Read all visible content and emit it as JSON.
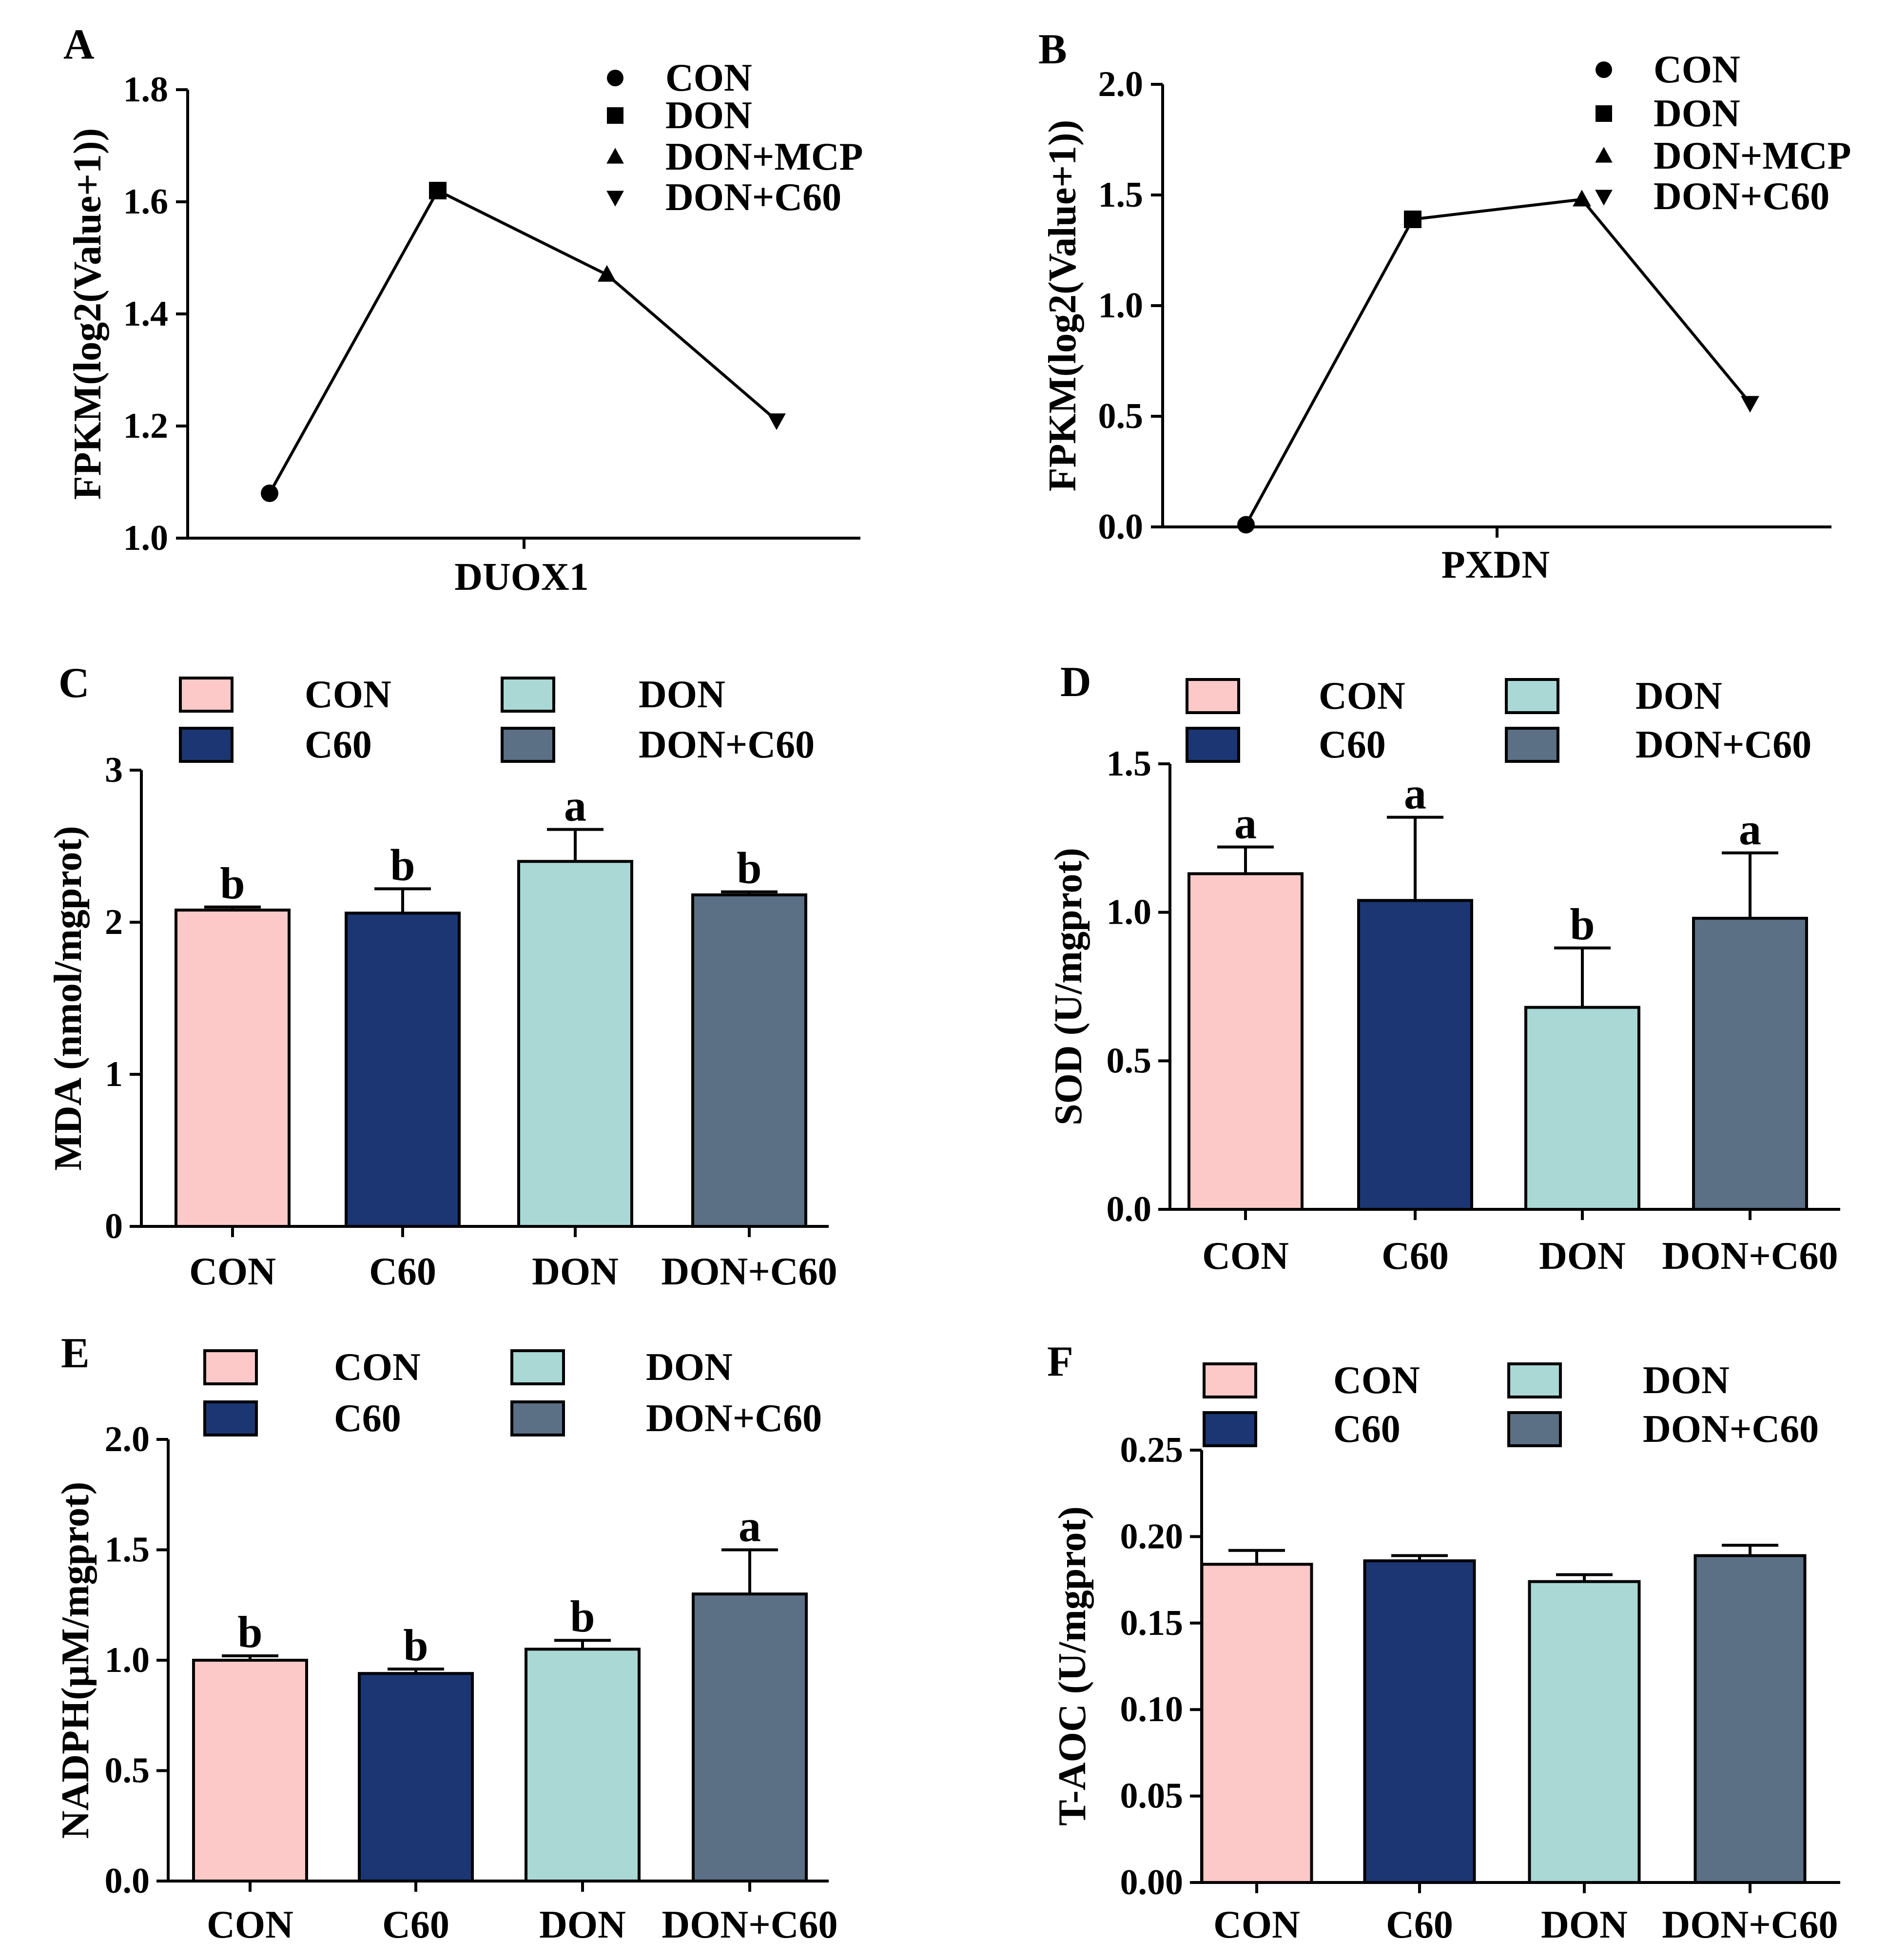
{
  "chart_data": [
    {
      "panel": "A",
      "type": "line",
      "xlabel": "DUOX1",
      "ylabel": "FPKM(log2(Value+1))",
      "ylim": [
        1.0,
        1.8
      ],
      "yticks": [
        "1.0",
        "1.2",
        "1.4",
        "1.6",
        "1.8"
      ],
      "categories": [
        "CON",
        "DON",
        "DON+MCP",
        "DON+C60"
      ],
      "markers": [
        "circle",
        "square",
        "triangle-up",
        "triangle-down"
      ],
      "values": [
        1.08,
        1.62,
        1.47,
        1.21
      ],
      "legend": [
        "CON",
        "DON",
        "DON+MCP",
        "DON+C60"
      ]
    },
    {
      "panel": "B",
      "type": "line",
      "xlabel": "PXDN",
      "ylabel": "FPKM(log2(Value+1))",
      "ylim": [
        0.0,
        2.0
      ],
      "yticks": [
        "0.0",
        "0.5",
        "1.0",
        "1.5",
        "2.0"
      ],
      "categories": [
        "CON",
        "DON",
        "DON+MCP",
        "DON+C60"
      ],
      "markers": [
        "circle",
        "square",
        "triangle-up",
        "triangle-down"
      ],
      "values": [
        0.01,
        1.39,
        1.48,
        0.56
      ],
      "legend": [
        "CON",
        "DON",
        "DON+MCP",
        "DON+C60"
      ]
    },
    {
      "panel": "C",
      "type": "bar",
      "ylabel": "MDA (nmol/mgprot)",
      "ylim": [
        0,
        3
      ],
      "yticks": [
        "0",
        "1",
        "2",
        "3"
      ],
      "categories": [
        "CON",
        "C60",
        "DON",
        "DON+C60"
      ],
      "values": [
        2.08,
        2.06,
        2.4,
        2.18
      ],
      "errors": [
        0.02,
        0.16,
        0.21,
        0.02
      ],
      "letters": [
        "b",
        "b",
        "a",
        "b"
      ],
      "legend": [
        "CON",
        "C60",
        "DON",
        "DON+C60"
      ]
    },
    {
      "panel": "D",
      "type": "bar",
      "ylabel": "SOD (U/mgprot)",
      "ylim": [
        0,
        1.5
      ],
      "yticks": [
        "0.0",
        "0.5",
        "1.0",
        "1.5"
      ],
      "categories": [
        "CON",
        "C60",
        "DON",
        "DON+C60"
      ],
      "values": [
        1.13,
        1.04,
        0.68,
        0.98
      ],
      "errors": [
        0.09,
        0.28,
        0.2,
        0.22
      ],
      "letters": [
        "a",
        "a",
        "b",
        "a"
      ],
      "legend": [
        "CON",
        "C60",
        "DON",
        "DON+C60"
      ]
    },
    {
      "panel": "E",
      "type": "bar",
      "ylabel": "NADPH(μM/mgprot)",
      "ylim": [
        0,
        2.0
      ],
      "yticks": [
        "0.0",
        "0.5",
        "1.0",
        "1.5",
        "2.0"
      ],
      "categories": [
        "CON",
        "C60",
        "DON",
        "DON+C60"
      ],
      "values": [
        1.0,
        0.94,
        1.05,
        1.3
      ],
      "errors": [
        0.02,
        0.02,
        0.04,
        0.2
      ],
      "letters": [
        "b",
        "b",
        "b",
        "a"
      ],
      "legend": [
        "CON",
        "C60",
        "DON",
        "DON+C60"
      ]
    },
    {
      "panel": "F",
      "type": "bar",
      "ylabel": "T-AOC (U/mgprot)",
      "ylim": [
        0,
        0.25
      ],
      "yticks": [
        "0.00",
        "0.05",
        "0.10",
        "0.15",
        "0.20",
        "0.25"
      ],
      "categories": [
        "CON",
        "C60",
        "DON",
        "DON+C60"
      ],
      "values": [
        0.184,
        0.186,
        0.174,
        0.189
      ],
      "errors": [
        0.008,
        0.003,
        0.004,
        0.006
      ],
      "letters": [
        "",
        "",
        "",
        ""
      ],
      "legend": [
        "CON",
        "C60",
        "DON",
        "DON+C60"
      ]
    }
  ],
  "colors": {
    "CON": "#fdc9c8",
    "C60": "#1b3672",
    "DON": "#a9d8d5",
    "DON+C60": "#5b6f85",
    "ink": "#000000"
  }
}
